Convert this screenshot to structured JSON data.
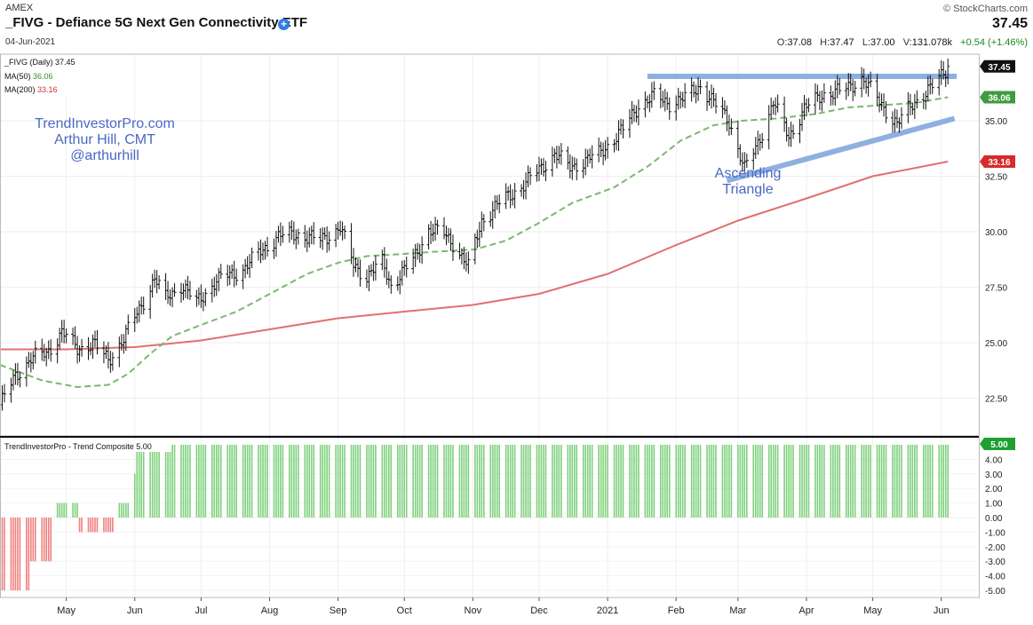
{
  "header": {
    "exchange": "AMEX",
    "title": "_FIVG - Defiance 5G Next Gen Connectivity ETF",
    "add_icon": "plus-circle-icon",
    "date": "04-Jun-2021",
    "brand": "© StockCharts.com",
    "last_price": "37.45",
    "open_label": "O:",
    "open": "37.08",
    "high_label": "H:",
    "high": "37.47",
    "low_label": "L:",
    "low": "37.00",
    "volume_label": "V:",
    "volume": "131.078k",
    "change": "+0.54 (+1.46%)"
  },
  "colors": {
    "price_bars": "#111111",
    "ma50": "#7bb86f",
    "ma200": "#e07070",
    "trendline": "#8eb0e0",
    "annotation_text": "#4a68c4",
    "composite_pos": "#7fd17f",
    "composite_neg": "#f08080"
  },
  "chart_data": [
    {
      "type": "ohlc",
      "legend": [
        "_FIVG (Daily) 37.45",
        "MA(50) 36.06",
        "MA(200) 33.16"
      ],
      "legend_items": [
        {
          "label": "_FIVG (Daily)",
          "value": "37.45"
        },
        {
          "label": "MA(50)",
          "value": "36.06"
        },
        {
          "label": "MA(200)",
          "value": "33.16"
        }
      ],
      "author_text": [
        "TrendInvestorPro.com",
        "Arthur Hill, CMT",
        "@arthurhill"
      ],
      "annotation": [
        "Ascending",
        "Triangle"
      ],
      "y_ticks": [
        "22.50",
        "25.00",
        "27.50",
        "30.00",
        "32.50",
        "35.00"
      ],
      "y_tick_values": [
        22.5,
        25,
        27.5,
        30,
        32.5,
        35
      ],
      "ylim": [
        20.8,
        38.0
      ],
      "x_tick_labels": [
        "May",
        "Jun",
        "Jul",
        "Aug",
        "Sep",
        "Oct",
        "Nov",
        "Dec",
        "2021",
        "Feb",
        "Mar",
        "Apr",
        "May",
        "Jun"
      ],
      "x_tick_dates": [
        "2020-05-01",
        "2020-06-01",
        "2020-07-01",
        "2020-08-01",
        "2020-09-01",
        "2020-10-01",
        "2020-11-01",
        "2020-12-01",
        "2021-01-01",
        "2021-02-01",
        "2021-03-01",
        "2021-04-01",
        "2021-05-01",
        "2021-06-01"
      ],
      "xlim": [
        "2020-04-01",
        "2021-06-18"
      ],
      "price_close_anchors": [
        [
          "2020-04-01",
          22.2
        ],
        [
          "2020-04-08",
          23.5
        ],
        [
          "2020-04-15",
          24.3
        ],
        [
          "2020-04-22",
          24.5
        ],
        [
          "2020-04-29",
          25.5
        ],
        [
          "2020-05-06",
          24.7
        ],
        [
          "2020-05-13",
          25.0
        ],
        [
          "2020-05-20",
          24.2
        ],
        [
          "2020-05-27",
          25.2
        ],
        [
          "2020-06-03",
          26.5
        ],
        [
          "2020-06-10",
          27.9
        ],
        [
          "2020-06-15",
          27.0
        ],
        [
          "2020-06-22",
          27.6
        ],
        [
          "2020-06-29",
          26.8
        ],
        [
          "2020-07-08",
          27.8
        ],
        [
          "2020-07-20",
          28.3
        ],
        [
          "2020-07-29",
          29.2
        ],
        [
          "2020-08-05",
          29.8
        ],
        [
          "2020-08-14",
          29.9
        ],
        [
          "2020-08-24",
          29.6
        ],
        [
          "2020-09-02",
          30.2
        ],
        [
          "2020-09-08",
          28.5
        ],
        [
          "2020-09-14",
          28.0
        ],
        [
          "2020-09-21",
          28.6
        ],
        [
          "2020-09-25",
          27.6
        ],
        [
          "2020-10-05",
          28.7
        ],
        [
          "2020-10-12",
          30.1
        ],
        [
          "2020-10-19",
          29.9
        ],
        [
          "2020-10-23",
          29.5
        ],
        [
          "2020-10-30",
          28.4
        ],
        [
          "2020-11-05",
          30.5
        ],
        [
          "2020-11-12",
          31.2
        ],
        [
          "2020-11-25",
          32.2
        ],
        [
          "2020-12-08",
          33.5
        ],
        [
          "2020-12-15",
          32.9
        ],
        [
          "2020-12-28",
          33.5
        ],
        [
          "2021-01-08",
          34.6
        ],
        [
          "2021-01-15",
          35.7
        ],
        [
          "2021-01-22",
          36.1
        ],
        [
          "2021-01-29",
          35.8
        ],
        [
          "2021-02-05",
          36.0
        ],
        [
          "2021-02-12",
          36.6
        ],
        [
          "2021-02-18",
          35.8
        ],
        [
          "2021-02-25",
          35.0
        ],
        [
          "2021-03-04",
          32.8
        ],
        [
          "2021-03-10",
          34.0
        ],
        [
          "2021-03-17",
          35.8
        ],
        [
          "2021-03-24",
          34.3
        ],
        [
          "2021-03-31",
          35.5
        ],
        [
          "2021-04-08",
          36.2
        ],
        [
          "2021-04-16",
          36.3
        ],
        [
          "2021-04-26",
          36.9
        ],
        [
          "2021-05-04",
          35.9
        ],
        [
          "2021-05-12",
          34.8
        ],
        [
          "2021-05-19",
          35.8
        ],
        [
          "2021-05-27",
          36.4
        ],
        [
          "2021-06-04",
          37.45
        ]
      ],
      "ma50": [
        [
          "2020-04-01",
          24.0
        ],
        [
          "2020-04-20",
          23.3
        ],
        [
          "2020-05-06",
          23.0
        ],
        [
          "2020-05-20",
          23.1
        ],
        [
          "2020-05-29",
          23.6
        ],
        [
          "2020-06-08",
          24.5
        ],
        [
          "2020-06-18",
          25.3
        ],
        [
          "2020-07-01",
          25.8
        ],
        [
          "2020-07-17",
          26.4
        ],
        [
          "2020-08-03",
          27.3
        ],
        [
          "2020-08-18",
          28.1
        ],
        [
          "2020-09-01",
          28.6
        ],
        [
          "2020-09-14",
          28.9
        ],
        [
          "2020-10-01",
          29.0
        ],
        [
          "2020-10-15",
          29.1
        ],
        [
          "2020-11-02",
          29.2
        ],
        [
          "2020-11-16",
          29.6
        ],
        [
          "2020-12-01",
          30.4
        ],
        [
          "2020-12-16",
          31.3
        ],
        [
          "2021-01-04",
          32.0
        ],
        [
          "2021-01-20",
          33.0
        ],
        [
          "2021-02-03",
          34.1
        ],
        [
          "2021-02-18",
          34.8
        ],
        [
          "2021-03-03",
          35.0
        ],
        [
          "2021-03-18",
          35.1
        ],
        [
          "2021-04-05",
          35.3
        ],
        [
          "2021-04-20",
          35.6
        ],
        [
          "2021-05-05",
          35.7
        ],
        [
          "2021-05-20",
          35.8
        ],
        [
          "2021-06-04",
          36.06
        ]
      ],
      "ma200": [
        [
          "2020-04-01",
          24.7
        ],
        [
          "2020-05-01",
          24.7
        ],
        [
          "2020-06-01",
          24.8
        ],
        [
          "2020-07-01",
          25.1
        ],
        [
          "2020-08-01",
          25.6
        ],
        [
          "2020-09-01",
          26.1
        ],
        [
          "2020-10-01",
          26.4
        ],
        [
          "2020-11-01",
          26.7
        ],
        [
          "2020-12-01",
          27.2
        ],
        [
          "2021-01-01",
          28.1
        ],
        [
          "2021-02-01",
          29.4
        ],
        [
          "2021-03-01",
          30.5
        ],
        [
          "2021-04-01",
          31.5
        ],
        [
          "2021-05-01",
          32.5
        ],
        [
          "2021-06-04",
          33.16
        ]
      ],
      "trendlines": [
        {
          "from": [
            "2021-01-19",
            37.0
          ],
          "to": [
            "2021-06-08",
            37.0
          ]
        },
        {
          "from": [
            "2021-02-24",
            32.3
          ],
          "to": [
            "2021-06-07",
            35.1
          ]
        }
      ],
      "price_labels": {
        "last": "37.45",
        "ma50": "36.06",
        "ma200": "33.16"
      }
    },
    {
      "type": "bar",
      "title": "TrendInvestorPro - Trend Composite 5.00",
      "title_name": "TrendInvestorPro - Trend Composite",
      "title_value": "5.00",
      "ylim": [
        -5,
        5
      ],
      "y_ticks": [
        "4.00",
        "3.00",
        "2.00",
        "1.00",
        "0.00",
        "-1.00",
        "-2.00",
        "-3.00",
        "-4.00",
        "-5.00"
      ],
      "y_tick_values": [
        4,
        3,
        2,
        1,
        0,
        -1,
        -2,
        -3,
        -4,
        -5
      ],
      "segments": [
        {
          "from": "2020-04-01",
          "to": "2020-04-14",
          "value": -5
        },
        {
          "from": "2020-04-15",
          "to": "2020-04-24",
          "value": -3
        },
        {
          "from": "2020-04-25",
          "to": "2020-05-06",
          "value": 1
        },
        {
          "from": "2020-05-07",
          "to": "2020-05-24",
          "value": -1
        },
        {
          "from": "2020-05-25",
          "to": "2020-05-31",
          "value": 1
        },
        {
          "from": "2020-06-01",
          "to": "2020-06-01",
          "value": 3
        },
        {
          "from": "2020-06-02",
          "to": "2021-06-04",
          "value": 5
        }
      ],
      "last_value": "5.00"
    }
  ]
}
